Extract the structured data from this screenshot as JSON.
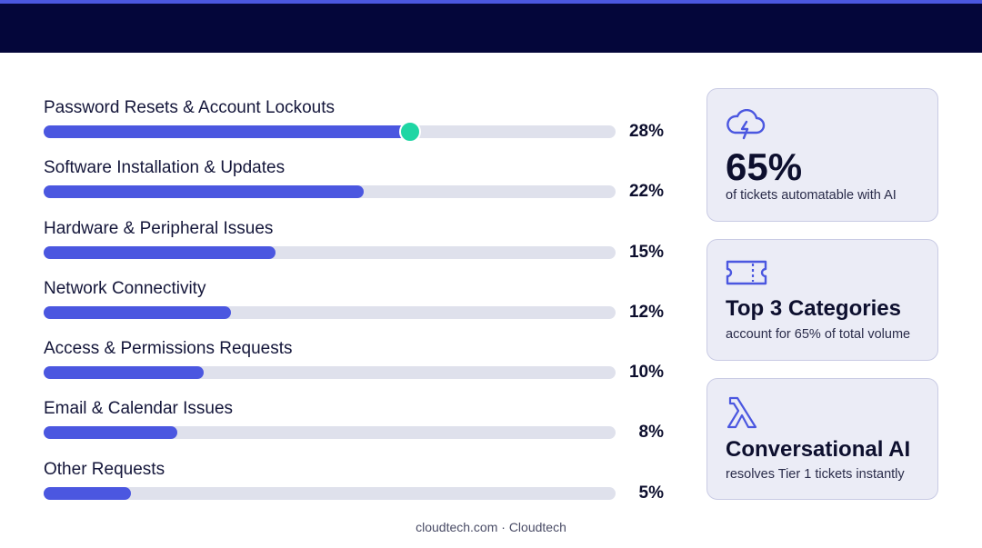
{
  "header": {
    "background": "#04063a",
    "accent": "#4b57e0"
  },
  "colors": {
    "bar_fill": "#4b57e0",
    "bar_track": "#dfe1ec",
    "knob": "#1fd6a4"
  },
  "categories": [
    {
      "label": "Password Resets & Account Lockouts",
      "percent_label": "28%",
      "fill_fraction": 0.64,
      "has_slider_knob": true
    },
    {
      "label": "Software Installation & Updates",
      "percent_label": "22%",
      "fill_fraction": 0.56
    },
    {
      "label": "Hardware & Peripheral Issues",
      "percent_label": "15%",
      "fill_fraction": 0.405
    },
    {
      "label": "Network Connectivity",
      "percent_label": "12%",
      "fill_fraction": 0.328
    },
    {
      "label": "Access & Permissions Requests",
      "percent_label": "10%",
      "fill_fraction": 0.28
    },
    {
      "label": "Email & Calendar Issues",
      "percent_label": "8%",
      "fill_fraction": 0.234
    },
    {
      "label": "Other Requests",
      "percent_label": "5%",
      "fill_fraction": 0.152
    }
  ],
  "cards": [
    {
      "icon": "cloud-lightning-icon",
      "headline": "65%",
      "subtext": "of tickets automatable with AI"
    },
    {
      "icon": "ticket-icon",
      "headline": "Top 3 Categories",
      "subtext": "account for 65% of total volume"
    },
    {
      "icon": "lambda-icon",
      "headline": "Conversational AI",
      "subtext": "resolves Tier 1 tickets instantly"
    }
  ],
  "footer": {
    "text": "cloudtech.com · Cloudtech"
  }
}
